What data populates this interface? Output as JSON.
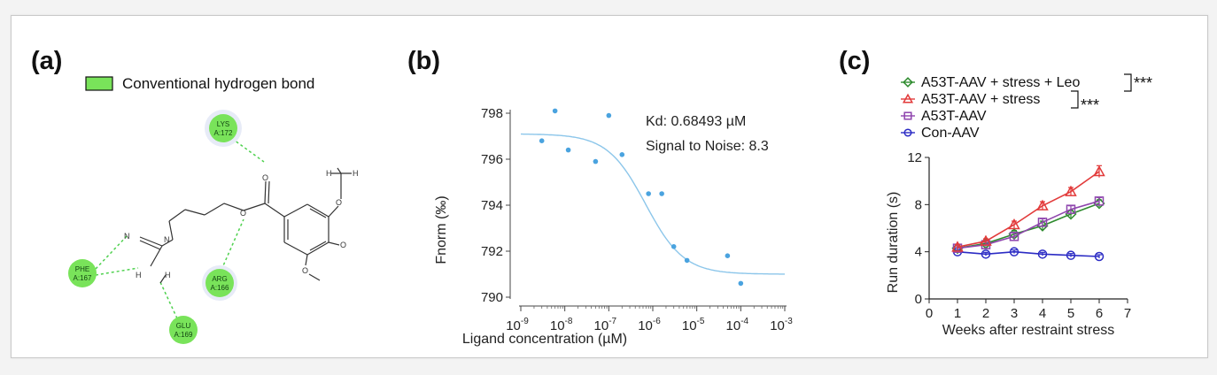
{
  "panels": {
    "a": {
      "label": "(a)",
      "legend_label": "Conventional hydrogen bond",
      "legend_color": "#79e35a",
      "residues": [
        {
          "name": "LYS",
          "id": "A:172"
        },
        {
          "name": "PHE",
          "id": "A:167"
        },
        {
          "name": "ARG",
          "id": "A:166"
        },
        {
          "name": "GLU",
          "id": "A:169"
        }
      ],
      "atoms": {
        "N1": "N",
        "N2": "N",
        "H1": "H",
        "H2": "H",
        "O_ester": "O",
        "O_carbonyl": "O",
        "O_top": "O",
        "O_mid": "O",
        "O_bot": "O",
        "H3": "H",
        "H4": "H"
      }
    },
    "b": {
      "label": "(b)"
    },
    "c": {
      "label": "(c)"
    }
  },
  "chart_data": [
    {
      "type": "scatter",
      "panel": "b",
      "xlabel": "Ligand concentration (µM)",
      "ylabel": "Fnorm (‰)",
      "x_scale": "log",
      "xlim": [
        1e-09,
        0.001
      ],
      "ylim": [
        790,
        798
      ],
      "x_ticks": [
        1e-09,
        1e-08,
        1e-07,
        1e-06,
        1e-05,
        0.0001,
        0.001
      ],
      "x_tick_labels": [
        {
          "base": "10",
          "exp": "-9"
        },
        {
          "base": "10",
          "exp": "-8"
        },
        {
          "base": "10",
          "exp": "-7"
        },
        {
          "base": "10",
          "exp": "-6"
        },
        {
          "base": "10",
          "exp": "-5"
        },
        {
          "base": "10",
          "exp": "-4"
        },
        {
          "base": "10",
          "exp": "-3"
        }
      ],
      "y_ticks": [
        790,
        792,
        794,
        796,
        798
      ],
      "y_tick_labels": [
        "790",
        "792",
        "794",
        "796",
        "798"
      ],
      "annotations": [
        "Kd: 0.68493 µM",
        "Signal to Noise: 8.3"
      ],
      "points": [
        {
          "x": 3e-09,
          "y": 796.8
        },
        {
          "x": 6e-09,
          "y": 798.1
        },
        {
          "x": 1.2e-08,
          "y": 796.4
        },
        {
          "x": 5e-08,
          "y": 795.9
        },
        {
          "x": 1e-07,
          "y": 797.9
        },
        {
          "x": 2e-07,
          "y": 796.2
        },
        {
          "x": 8e-07,
          "y": 794.5
        },
        {
          "x": 1.6e-06,
          "y": 794.5
        },
        {
          "x": 3e-06,
          "y": 792.2
        },
        {
          "x": 6e-06,
          "y": 791.6
        },
        {
          "x": 5e-05,
          "y": 791.8
        },
        {
          "x": 0.0001,
          "y": 790.6
        }
      ],
      "fit": {
        "top": 797.1,
        "bottom": 791.0,
        "kd": 6.8493e-07,
        "hill": 1.0
      },
      "colors": {
        "points": "#4aa3df",
        "fit": "#8cc6ea"
      }
    },
    {
      "type": "line",
      "panel": "c",
      "xlabel": "Weeks after restraint stress",
      "ylabel": "Run duration (s)",
      "xlim": [
        0,
        7
      ],
      "ylim": [
        0,
        12
      ],
      "x_ticks": [
        0,
        1,
        2,
        3,
        4,
        5,
        6,
        7
      ],
      "x_tick_labels": [
        "0",
        "1",
        "2",
        "3",
        "4",
        "5",
        "6",
        "7"
      ],
      "y_ticks": [
        0,
        4,
        8,
        12
      ],
      "y_tick_labels": [
        "0",
        "4",
        "8",
        "12"
      ],
      "x": [
        1,
        2,
        3,
        4,
        5,
        6
      ],
      "series": [
        {
          "name": "A53T-AAV + stress + Leo",
          "color": "#2e8b2e",
          "marker": "diamond",
          "values": [
            4.3,
            4.7,
            5.5,
            6.2,
            7.2,
            8.1
          ],
          "errors": [
            0.2,
            0.25,
            0.3,
            0.4,
            0.3,
            0.3
          ]
        },
        {
          "name": "A53T-AAV + stress",
          "color": "#e23b3b",
          "marker": "triangle",
          "values": [
            4.4,
            4.9,
            6.3,
            7.9,
            9.1,
            10.8
          ],
          "errors": [
            0.2,
            0.2,
            0.3,
            0.35,
            0.35,
            0.5
          ]
        },
        {
          "name": "A53T-AAV",
          "color": "#8e44ad",
          "marker": "square",
          "values": [
            4.3,
            4.6,
            5.3,
            6.5,
            7.6,
            8.3
          ],
          "errors": [
            0.2,
            0.2,
            0.3,
            0.3,
            0.3,
            0.3
          ]
        },
        {
          "name": "Con-AAV",
          "color": "#2b2bc4",
          "marker": "circle",
          "values": [
            4.0,
            3.8,
            4.0,
            3.8,
            3.7,
            3.6
          ],
          "errors": [
            0.15,
            0.15,
            0.15,
            0.15,
            0.15,
            0.15
          ]
        }
      ],
      "significance": [
        "***",
        "***"
      ]
    }
  ]
}
